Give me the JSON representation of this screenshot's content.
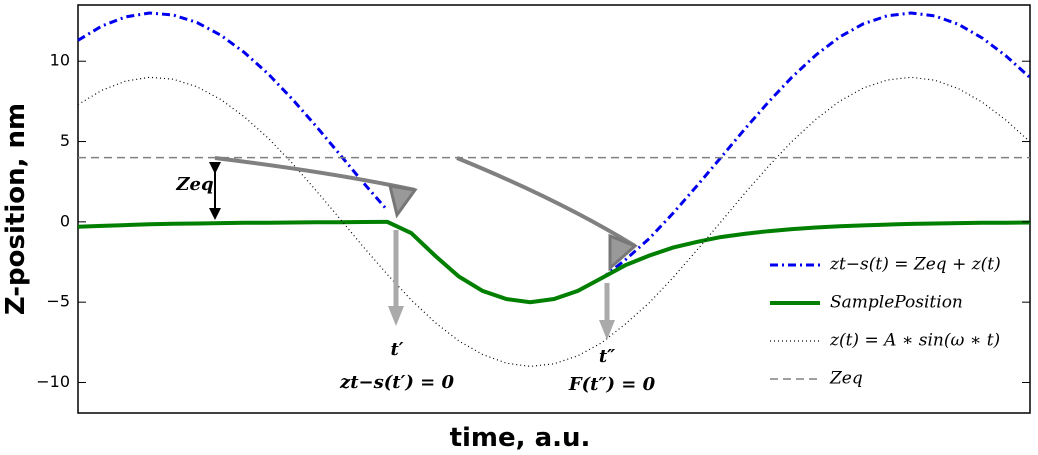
{
  "chart_data": {
    "type": "line",
    "y_label": "Z-position, nm",
    "x_label": "time, a.u.",
    "xlim": [
      0,
      100
    ],
    "ylim": [
      -11.9,
      13.5
    ],
    "yticks": [
      {
        "value": -10,
        "label": "−10"
      },
      {
        "value": -5,
        "label": "−5"
      },
      0,
      5,
      10
    ],
    "x": [
      0,
      2.5,
      5,
      7.5,
      10,
      12.5,
      15,
      17.5,
      20,
      22.5,
      25,
      27.5,
      30,
      32.5,
      35,
      37.5,
      40,
      42.5,
      45,
      47.5,
      50,
      52.5,
      55,
      57.5,
      60,
      62.5,
      65,
      67.5,
      70,
      72.5,
      75,
      77.5,
      80,
      82.5,
      85,
      87.5,
      90,
      92.5,
      95,
      97.5,
      100
    ],
    "series": [
      {
        "name": "zt−s(t) = Zeq + z(t)",
        "color": "#0000ee",
        "style": "dashdot",
        "values": [
          11.3,
          12.19,
          12.76,
          13,
          12.88,
          12.41,
          11.62,
          10.53,
          9.2,
          7.65,
          5.96,
          4.2,
          2.42,
          0.72,
          null,
          null,
          null,
          null,
          null,
          null,
          null,
          null,
          -3.53,
          -2.36,
          -1.04,
          0.53,
          2.23,
          3.98,
          5.75,
          7.44,
          9.01,
          10.38,
          11.51,
          12.33,
          12.83,
          13,
          12.82,
          12.29,
          11.44,
          10.32,
          8.98
        ]
      },
      {
        "name": "SamplePosition",
        "color": "#007f00",
        "style": "solid",
        "values": [
          -0.3,
          -0.25,
          -0.2,
          -0.15,
          -0.12,
          -0.1,
          -0.08,
          -0.06,
          -0.05,
          -0.04,
          -0.03,
          -0.02,
          -0.01,
          0,
          -0.7,
          -2.1,
          -3.4,
          -4.3,
          -4.8,
          -5.0,
          -4.8,
          -4.3,
          -3.5,
          -2.7,
          -2.1,
          -1.6,
          -1.25,
          -0.95,
          -0.75,
          -0.58,
          -0.45,
          -0.35,
          -0.28,
          -0.22,
          -0.17,
          -0.13,
          -0.1,
          -0.08,
          -0.06,
          -0.05,
          -0.04
        ]
      },
      {
        "name": "z(t) = A ∗ sin(ω ∗ t)",
        "color": "#000000",
        "style": "dotted",
        "values": [
          7.3,
          8.19,
          8.76,
          9,
          8.88,
          8.41,
          7.62,
          6.53,
          5.2,
          3.65,
          1.96,
          0.2,
          -1.58,
          -3.28,
          -4.86,
          -6.26,
          -7.41,
          -8.26,
          -8.8,
          -9,
          -8.84,
          -8.34,
          -7.53,
          -6.36,
          -5.04,
          -3.47,
          -1.77,
          -0.02,
          1.75,
          3.44,
          5.01,
          6.38,
          7.51,
          8.33,
          8.83,
          9,
          8.82,
          8.29,
          7.44,
          6.32,
          4.98
        ]
      },
      {
        "name": "Zeq",
        "color": "#808080",
        "style": "dashed",
        "values": [
          4,
          4,
          4,
          4,
          4,
          4,
          4,
          4,
          4,
          4,
          4,
          4,
          4,
          4,
          4,
          4,
          4,
          4,
          4,
          4,
          4,
          4,
          4,
          4,
          4,
          4,
          4,
          4,
          4,
          4,
          4,
          4,
          4,
          4,
          4,
          4,
          4,
          4,
          4,
          4,
          4
        ]
      }
    ],
    "annotations": [
      "Zeq",
      "t′",
      "zt−s(t′) = 0",
      "t″",
      "F(t″) = 0"
    ]
  }
}
